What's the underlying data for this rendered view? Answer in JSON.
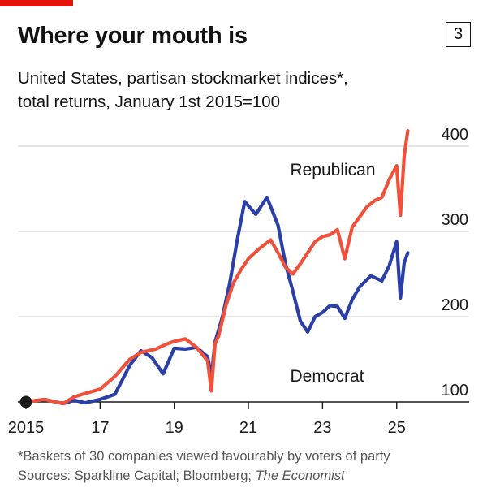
{
  "header": {
    "title": "Where your mouth is",
    "chart_number": "3",
    "subtitle_line1": "United States, partisan stockmarket indices*,",
    "subtitle_line2": "total returns, January 1st 2015=100"
  },
  "footer": {
    "note": "*Baskets of 30 companies viewed favourably by voters of party",
    "sources_prefix": "Sources: Sparkline Capital; Bloomberg; ",
    "sources_italic": "The Economist"
  },
  "colors": {
    "republican": "#f0513a",
    "democrat": "#2b3fa8",
    "gridline": "#c9c9c9",
    "axis": "#1a1a1a",
    "brand_red": "#e3120b"
  },
  "chart_data": {
    "type": "line",
    "title": "Where your mouth is",
    "subtitle": "United States, partisan stockmarket indices*, total returns, January 1st 2015=100",
    "xlabel": "",
    "ylabel": "",
    "xlim": [
      2015,
      2025.4
    ],
    "ylim": [
      100,
      400
    ],
    "grid": true,
    "x_ticks": [
      2015,
      2017,
      2019,
      2021,
      2023,
      2025
    ],
    "x_tick_labels": [
      "2015",
      "17",
      "19",
      "21",
      "23",
      "25"
    ],
    "y_ticks": [
      100,
      200,
      300,
      400
    ],
    "y_tick_labels": [
      "100",
      "200",
      "300",
      "400"
    ],
    "legend": "inline labels",
    "series": [
      {
        "name": "Republican",
        "color": "#f0513a",
        "x": [
          2015.0,
          2015.5,
          2016.0,
          2016.3,
          2016.6,
          2017.0,
          2017.4,
          2017.8,
          2018.1,
          2018.5,
          2018.8,
          2019.0,
          2019.3,
          2019.6,
          2019.9,
          2020.0,
          2020.1,
          2020.2,
          2020.4,
          2020.6,
          2020.8,
          2021.0,
          2021.3,
          2021.6,
          2021.8,
          2022.0,
          2022.2,
          2022.4,
          2022.6,
          2022.8,
          2023.0,
          2023.2,
          2023.4,
          2023.6,
          2023.8,
          2024.0,
          2024.2,
          2024.4,
          2024.6,
          2024.8,
          2025.0,
          2025.1,
          2025.2,
          2025.3
        ],
        "values": [
          100,
          103,
          98,
          106,
          110,
          115,
          130,
          150,
          158,
          162,
          168,
          171,
          174,
          164,
          148,
          113,
          168,
          178,
          214,
          240,
          255,
          268,
          280,
          290,
          275,
          258,
          250,
          262,
          275,
          288,
          294,
          296,
          302,
          268,
          305,
          317,
          329,
          336,
          340,
          361,
          377,
          319,
          388,
          418
        ]
      },
      {
        "name": "Democrat",
        "color": "#2b3fa8",
        "x": [
          2015.0,
          2015.5,
          2016.0,
          2016.3,
          2016.6,
          2017.0,
          2017.4,
          2017.8,
          2018.1,
          2018.4,
          2018.7,
          2019.0,
          2019.3,
          2019.6,
          2019.9,
          2020.0,
          2020.1,
          2020.3,
          2020.5,
          2020.7,
          2020.9,
          2021.2,
          2021.5,
          2021.8,
          2022.0,
          2022.2,
          2022.4,
          2022.6,
          2022.8,
          2023.0,
          2023.2,
          2023.4,
          2023.6,
          2023.8,
          2024.0,
          2024.3,
          2024.6,
          2024.8,
          2025.0,
          2025.1,
          2025.2,
          2025.3
        ],
        "values": [
          100,
          103,
          98,
          102,
          99,
          103,
          109,
          143,
          160,
          152,
          133,
          163,
          162,
          164,
          153,
          130,
          170,
          200,
          240,
          290,
          335,
          320,
          340,
          307,
          262,
          230,
          195,
          182,
          200,
          205,
          213,
          212,
          198,
          220,
          235,
          248,
          242,
          260,
          288,
          222,
          263,
          275
        ]
      }
    ],
    "annotations": [
      "Republican",
      "Democrat"
    ]
  }
}
